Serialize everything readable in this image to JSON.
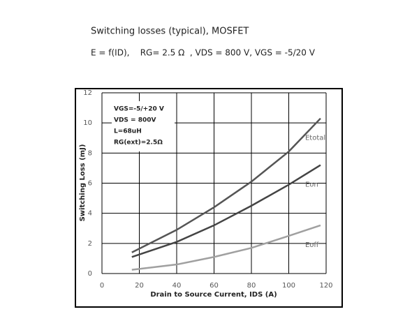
{
  "chart_data": {
    "type": "line",
    "title": "Switching losses (typical), MOSFET",
    "subtitle": "E = f(ID),    RG= 2.5 Ω  , VDS = 800 V, VGS = -5/20 V",
    "x_label": "Drain to Source Current, IDS (A)",
    "y_label": "Switching Loss (mJ)",
    "annotations": [
      "VGS=-5/+20 V",
      "VDS = 800V",
      "L=68uH",
      "RG(ext)=2.5Ω"
    ],
    "x": [
      16,
      40,
      60,
      80,
      100,
      117
    ],
    "series": [
      {
        "name": "Etotal",
        "color": "#555555",
        "values": [
          1.4,
          2.9,
          4.4,
          6.1,
          8.1,
          10.3
        ]
      },
      {
        "name": "Eon",
        "color": "#444444",
        "values": [
          1.1,
          2.1,
          3.2,
          4.5,
          5.9,
          7.2
        ]
      },
      {
        "name": "Eoff",
        "color": "#a0a0a0",
        "values": [
          0.25,
          0.6,
          1.1,
          1.7,
          2.5,
          3.2
        ]
      }
    ],
    "xlim": [
      0,
      120
    ],
    "xticks": [
      0,
      20,
      40,
      60,
      80,
      100,
      120
    ],
    "ylim": [
      0,
      12
    ],
    "yticks": [
      0,
      2,
      4,
      6,
      8,
      10,
      12
    ],
    "grid": true
  }
}
